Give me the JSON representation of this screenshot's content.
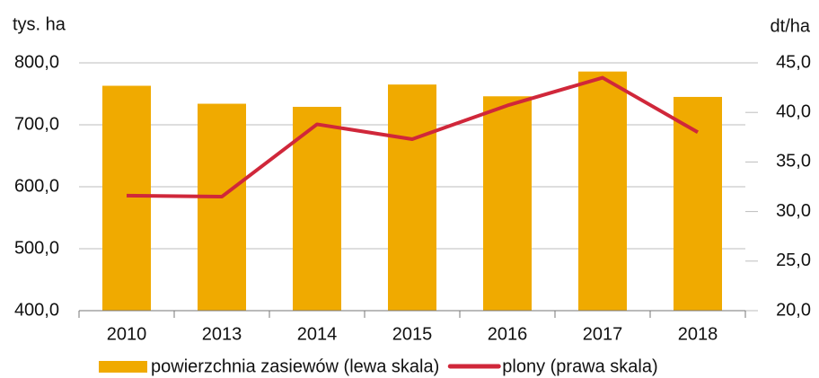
{
  "chart_data": {
    "type": "bar",
    "ylabel": "tys. ha",
    "y2label": "dt/ha",
    "categories": [
      "2010",
      "2013",
      "2014",
      "2015",
      "2016",
      "2017",
      "2018"
    ],
    "series": [
      {
        "name": "powierzchnia zasiewów (lewa skala)",
        "type": "bar",
        "color": "#f0aa00",
        "axis": "y",
        "values": [
          763,
          734,
          729,
          765,
          746,
          786,
          745
        ]
      },
      {
        "name": "plony (prawa skala)",
        "type": "line",
        "color": "#d0273a",
        "axis": "y2",
        "values": [
          31.6,
          31.5,
          38.8,
          37.3,
          40.7,
          43.5,
          38.0
        ]
      }
    ],
    "ylim": [
      400,
      800
    ],
    "yticks": [
      {
        "value": 400,
        "label": "400,0"
      },
      {
        "value": 500,
        "label": "500,0"
      },
      {
        "value": 600,
        "label": "600,0"
      },
      {
        "value": 700,
        "label": "700,0"
      },
      {
        "value": 800,
        "label": "800,0"
      }
    ],
    "y2lim": [
      20,
      45
    ],
    "y2ticks": [
      {
        "value": 20,
        "label": "20,0"
      },
      {
        "value": 25,
        "label": "25,0"
      },
      {
        "value": 30,
        "label": "30,0"
      },
      {
        "value": 35,
        "label": "35,0"
      },
      {
        "value": 40,
        "label": "40,0"
      },
      {
        "value": 45,
        "label": "45,0"
      }
    ],
    "grid": true,
    "legend": "bottom"
  }
}
